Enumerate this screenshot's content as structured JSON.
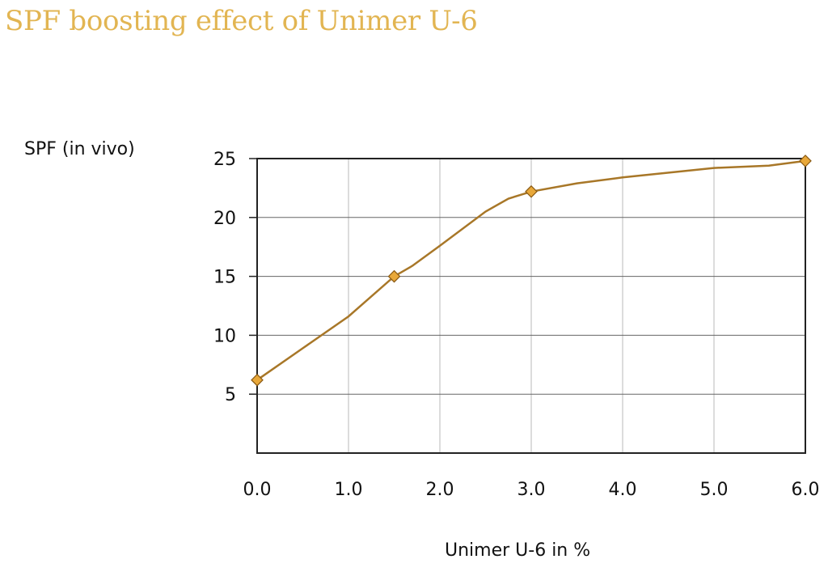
{
  "chart_data": {
    "type": "line",
    "title": "SPF boosting effect of Unimer U-6",
    "ylabel": "SPF (in vivo)",
    "xlabel": "Unimer U-6 in %",
    "xlim": [
      0,
      6
    ],
    "ylim": [
      0,
      25
    ],
    "xticks": [
      "0.0",
      "1.0",
      "2.0",
      "3.0",
      "4.0",
      "5.0",
      "6.0"
    ],
    "yticks": [
      "5",
      "10",
      "15",
      "20",
      "25"
    ],
    "grid": true,
    "line_color": "#A87728",
    "marker_color": "#E8A83A",
    "curve": [
      [
        0,
        6.2
      ],
      [
        0.5,
        8.9
      ],
      [
        1.0,
        11.6
      ],
      [
        1.5,
        15.0
      ],
      [
        1.7,
        15.9
      ],
      [
        2.0,
        17.6
      ],
      [
        2.5,
        20.5
      ],
      [
        2.75,
        21.6
      ],
      [
        3.0,
        22.2
      ],
      [
        3.5,
        22.9
      ],
      [
        4.0,
        23.4
      ],
      [
        5.0,
        24.2
      ],
      [
        5.6,
        24.4
      ],
      [
        6.0,
        24.8
      ]
    ],
    "series": [
      {
        "x": [
          0.0,
          1.5,
          3.0,
          6.0
        ],
        "values": [
          6.2,
          15.0,
          22.2,
          24.8
        ]
      }
    ]
  }
}
